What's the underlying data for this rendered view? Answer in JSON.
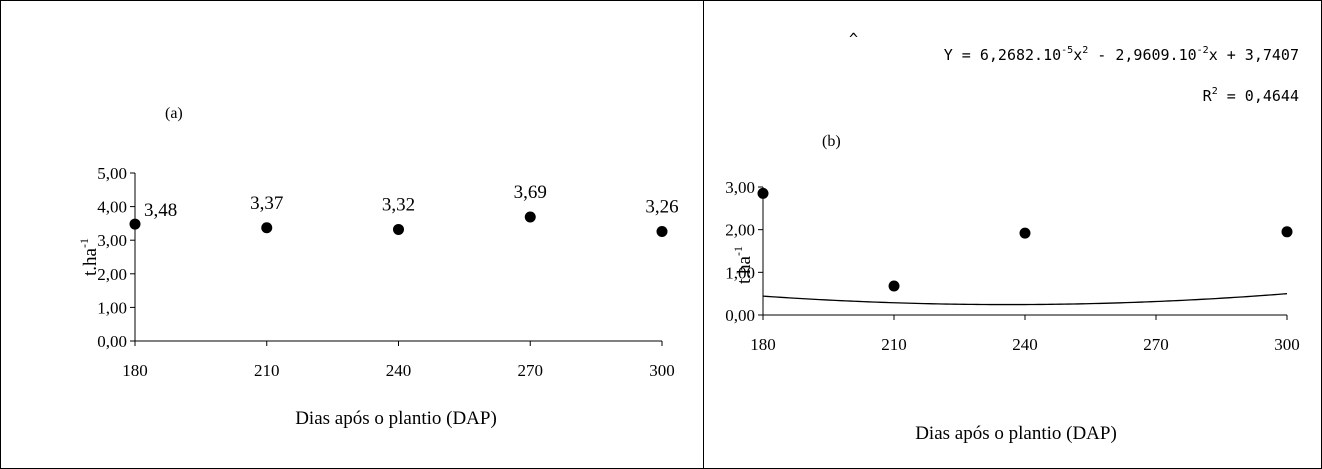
{
  "panels": [
    {
      "panel_label": "(a)",
      "equation": null,
      "r2": null
    },
    {
      "panel_label": "(b)",
      "equation": {
        "hat": "^",
        "text_pre": "Y = 6,2682.10",
        "exp1": "-5",
        "mid1": "x",
        "exp2": "2",
        "mid2": " - 2,9609.10",
        "exp3": "-2",
        "post": "x + 3,7407"
      },
      "r2": {
        "pre": "R",
        "exp": "2",
        "post": " = 0,4644"
      }
    }
  ],
  "chart_data": [
    {
      "type": "scatter",
      "title": "",
      "panel_label": "(a)",
      "xlabel": "Dias após o plantio (DAP)",
      "ylabel": {
        "base": "t.ha",
        "exp": "-1"
      },
      "xlim": [
        180,
        300
      ],
      "ylim": [
        0,
        5
      ],
      "x_ticks": [
        "180",
        "210",
        "240",
        "270",
        "300"
      ],
      "y_ticks": [
        "0,00",
        "1,00",
        "2,00",
        "3,00",
        "4,00",
        "5,00"
      ],
      "points": [
        {
          "x": 180,
          "y": 3.48,
          "label": "3,48"
        },
        {
          "x": 210,
          "y": 3.37,
          "label": "3,37"
        },
        {
          "x": 240,
          "y": 3.32,
          "label": "3,32"
        },
        {
          "x": 270,
          "y": 3.69,
          "label": "3,69"
        },
        {
          "x": 300,
          "y": 3.26,
          "label": "3,26"
        }
      ],
      "grid": false,
      "legend": null
    },
    {
      "type": "scatter",
      "title": "",
      "panel_label": "(b)",
      "xlabel": "Dias após o plantio (DAP)",
      "ylabel": {
        "base": "t.ha",
        "exp": "-1"
      },
      "xlim": [
        180,
        300
      ],
      "ylim": [
        0,
        3
      ],
      "x_ticks": [
        "180",
        "210",
        "240",
        "270",
        "300"
      ],
      "y_ticks": [
        "0,00",
        "1,00",
        "2,00",
        "3,00"
      ],
      "points": [
        {
          "x": 180,
          "y": 2.85
        },
        {
          "x": 210,
          "y": 0.68
        },
        {
          "x": 240,
          "y": 1.92
        },
        {
          "x": 300,
          "y": 1.95
        }
      ],
      "fit": {
        "type": "quadratic",
        "coefficients": {
          "a": 6.2682e-05,
          "b": -0.029609,
          "c": 3.7407
        },
        "equation": "Y = 6,2682.10-5x2 - 2,9609.10-2x + 3,7407",
        "r2": 0.4644
      },
      "grid": false,
      "legend": null
    }
  ]
}
